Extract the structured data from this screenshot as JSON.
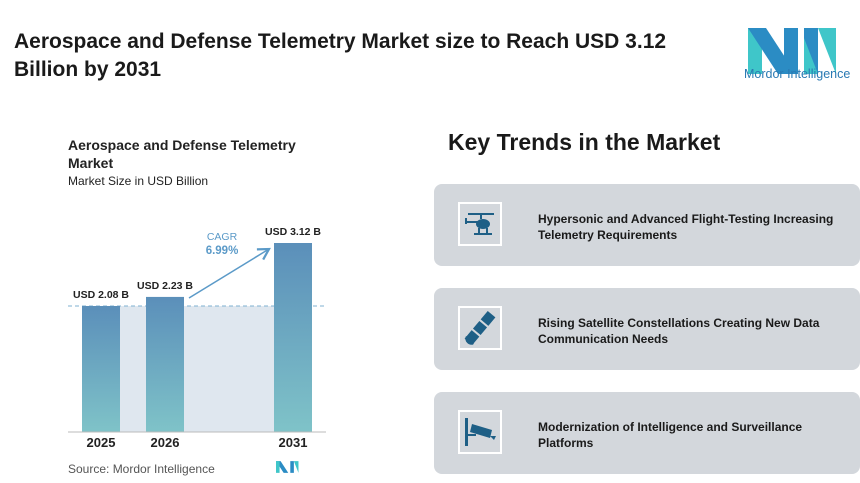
{
  "header": {
    "title": "Aerospace and Defense Telemetry Market size to Reach USD 3.12 Billion by 2031",
    "logo_text": "Mordor Intelligence"
  },
  "chart_data": {
    "type": "bar",
    "title": "Aerospace and Defense Telemetry Market",
    "subtitle": "Market Size in USD Billion",
    "categories": [
      "2025",
      "2026",
      "2031"
    ],
    "values": [
      2.08,
      2.23,
      3.12
    ],
    "data_labels": [
      "USD 2.08 B",
      "USD 2.23 B",
      "USD 3.12 B"
    ],
    "annotation": {
      "label": "CAGR",
      "value": "6.99%"
    },
    "ylim": [
      0,
      3.12
    ],
    "grid": false,
    "colors": {
      "bar_top": "#5b8fba",
      "bar_bottom": "#7fc3c8",
      "accent": "#5b9ac8"
    }
  },
  "source": "Source: Mordor Intelligence",
  "trends": {
    "title": "Key Trends in the Market",
    "items": [
      {
        "icon": "helicopter-icon",
        "text": "Hypersonic and Advanced Flight-Testing Increasing Telemetry Requirements"
      },
      {
        "icon": "satellite-icon",
        "text": "Rising Satellite Constellations Creating New Data Communication Needs"
      },
      {
        "icon": "surveillance-camera-icon",
        "text": "Modernization of Intelligence and Surveillance Platforms"
      }
    ]
  }
}
